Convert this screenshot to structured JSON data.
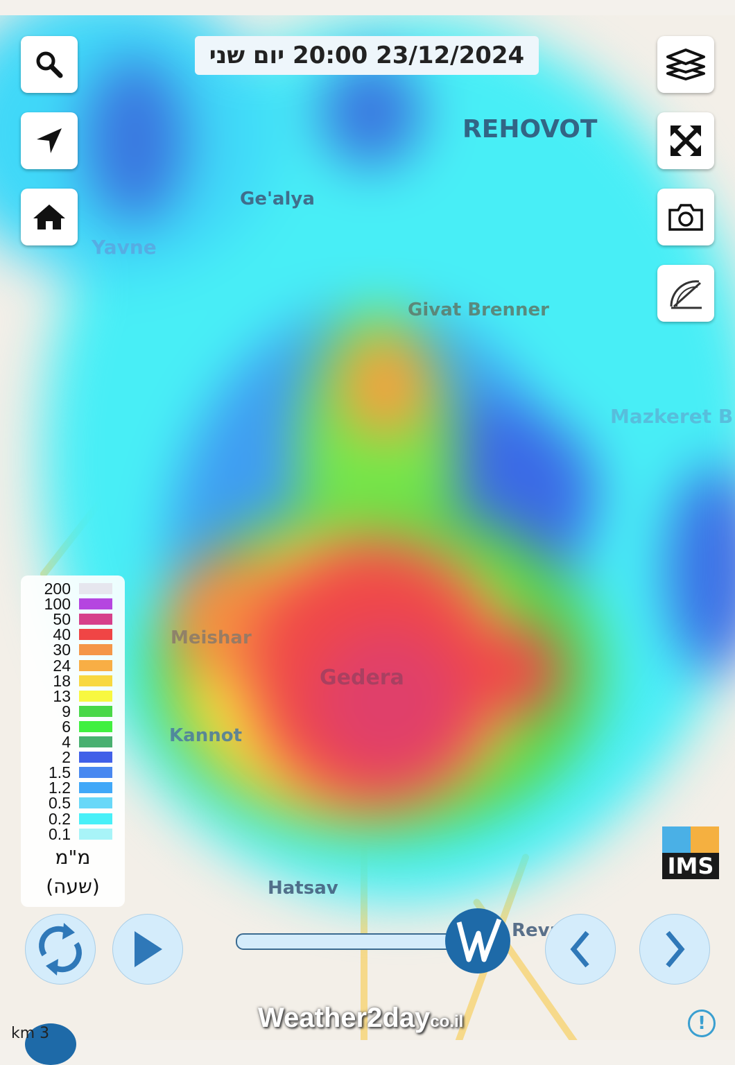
{
  "header": {
    "datetime": "23/12/2024 20:00 יום שני"
  },
  "controls": {
    "left": [
      "search-icon",
      "navigate-arrow-icon",
      "home-icon"
    ],
    "right": [
      "layers-icon",
      "fullscreen-icon",
      "camera-icon",
      "measure-protractor-icon"
    ]
  },
  "map_labels": {
    "rehovot": "REHOVOT",
    "gealya": "Ge'alya",
    "yavne": "Yavne",
    "givat_brenner": "Givat Brenner",
    "mazkeret": "Mazkeret B",
    "meishar": "Meishar",
    "gedera": "Gedera",
    "kannot": "Kannot",
    "hatsav": "Hatsav",
    "reva": "Reva"
  },
  "legend": {
    "items": [
      {
        "label": "200",
        "color": "#e6e6ee"
      },
      {
        "label": "100",
        "color": "#b545e0"
      },
      {
        "label": "50",
        "color": "#d6408a"
      },
      {
        "label": "40",
        "color": "#f04545"
      },
      {
        "label": "30",
        "color": "#f59648"
      },
      {
        "label": "24",
        "color": "#f8ae45"
      },
      {
        "label": "18",
        "color": "#f8d840"
      },
      {
        "label": "13",
        "color": "#f8f840"
      },
      {
        "label": "9",
        "color": "#48d848"
      },
      {
        "label": "6",
        "color": "#40f040"
      },
      {
        "label": "4",
        "color": "#48b070"
      },
      {
        "label": "2",
        "color": "#4060e8"
      },
      {
        "label": "1.5",
        "color": "#4888f0"
      },
      {
        "label": "1.2",
        "color": "#40a8f8"
      },
      {
        "label": "0.5",
        "color": "#68d8f8"
      },
      {
        "label": "0.2",
        "color": "#48f0f8"
      },
      {
        "label": "0.1",
        "color": "#a8f4f8"
      }
    ],
    "unit": "מ\"מ",
    "period": "(שעה)"
  },
  "ims_logo": "IMS",
  "watermark": "Weather2day",
  "watermark_suffix": "co.il",
  "scale": "km 3",
  "slider": {
    "progress": 1.0
  },
  "accent": "#1e6aa8"
}
